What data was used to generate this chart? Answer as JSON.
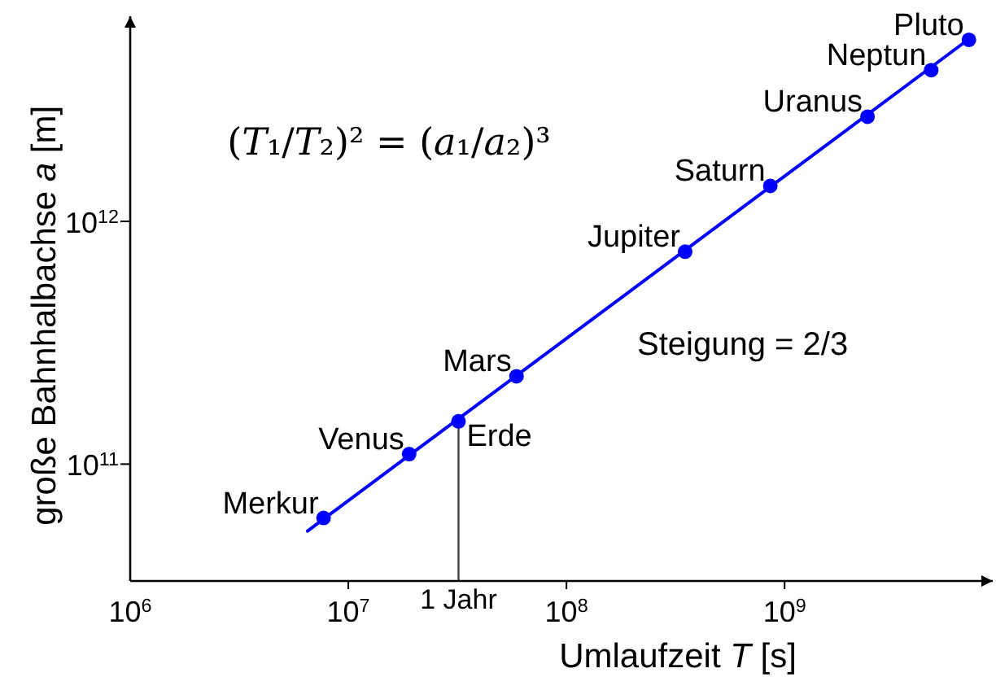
{
  "chart_data": {
    "type": "scatter",
    "xlabel": "Umlaufzeit T [s]",
    "ylabel": "große Bahnhalbachse a [m]",
    "log": "xy",
    "xlim": [
      1000000.0,
      9000000000.0
    ],
    "ylim": [
      33000000000.0,
      7000000000000.0
    ],
    "xticks": [
      {
        "value": 1000000.0,
        "label": "10$^{6}$"
      },
      {
        "value": 10000000.0,
        "label": "10$^{7}$"
      },
      {
        "value": 100000000.0,
        "label": "10$^{8}$"
      },
      {
        "value": 1000000000.0,
        "label": "10$^{9}$"
      }
    ],
    "yticks": [
      {
        "value": 100000000000.0,
        "label": "10$^{11}$"
      },
      {
        "value": 1000000000000.0,
        "label": "10$^{12}$"
      }
    ],
    "series": [
      {
        "color": "#0000ff",
        "marker": "circle",
        "x": [
          7700000.0,
          19000000.0,
          32000000.0,
          59000000.0,
          350000000.0,
          860000000.0,
          2400000000.0,
          4700000000.0,
          7000000000.0
        ],
        "values": [
          60000000000.0,
          110000000000.0,
          150000000000.0,
          230000000000.0,
          750000000000.0,
          1400000000000.0,
          2700000000000.0,
          4200000000000.0,
          5600000000000.0
        ]
      },
      {
        "type": "line",
        "color": "#0000ff",
        "x": [
          6500000.0,
          7200000000.0
        ],
        "values": [
          53000000000.0,
          5750000000000.0
        ]
      }
    ],
    "ref_lines": [
      {
        "axis": "x",
        "value": 32000000.0,
        "label": "1 Jahr",
        "color": "#404040"
      }
    ],
    "annotations": [
      "(T₁/T₂)² = (a₁/a₂)³",
      "Steigung = 2/3",
      {
        "text": "Merkur",
        "x": 7700000.0,
        "y": 60000000000.0
      },
      {
        "text": "Venus",
        "x": 19000000.0,
        "y": 110000000000.0
      },
      {
        "text": "Erde",
        "x": 32000000.0,
        "y": 150000000000.0
      },
      {
        "text": "Mars",
        "x": 59000000.0,
        "y": 230000000000.0
      },
      {
        "text": "Jupiter",
        "x": 350000000.0,
        "y": 750000000000.0
      },
      {
        "text": "Saturn",
        "x": 860000000.0,
        "y": 1400000000000.0
      },
      {
        "text": "Uranus",
        "x": 2400000000.0,
        "y": 2700000000000.0
      },
      {
        "text": "Neptun",
        "x": 4700000000.0,
        "y": 4200000000000.0
      },
      {
        "text": "Pluto",
        "x": 7000000000.0,
        "y": 5600000000000.0
      }
    ]
  }
}
